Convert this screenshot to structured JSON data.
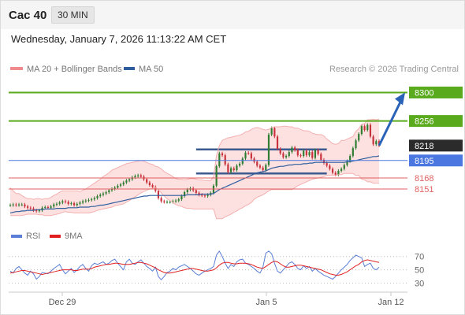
{
  "header": {
    "ticker": "Cac 40",
    "timeframe": "30 MIN"
  },
  "datetime": "Wednesday, January 7, 2026 11:13:22 AM CET",
  "legend_top": [
    {
      "label": "MA 20 + Bollinger Bands",
      "color": "#f08b8b"
    },
    {
      "label": "MA 50",
      "color": "#2f5d9e"
    }
  ],
  "copyright": "Research © 2026 Trading Central",
  "legend_bottom": [
    {
      "label": "RSI",
      "color": "#5b7fd6"
    },
    {
      "label": "9MA",
      "color": "#e02020"
    }
  ],
  "colors": {
    "resistance": "#5aaa1e",
    "support_red": "#e06060",
    "pivot_blue": "#4a78e0",
    "price_tag": "#2b2b2b",
    "forecast_arrow": "#2a62b8",
    "candle_red": "#c8323c",
    "candle_green": "#2e7d32",
    "bb_fill": "#fde1e1"
  },
  "chart_data": [
    {
      "type": "candlestick",
      "title": "",
      "y_axis_ticks": [
        8300,
        8256,
        8218,
        8195,
        8168,
        8151
      ],
      "ylim": [
        8095,
        8320
      ],
      "x_tick_labels": [
        "Dec 29",
        "Jan 5",
        "Jan 12"
      ],
      "levels": [
        {
          "value": 8300,
          "label": "8300",
          "kind": "resistance"
        },
        {
          "value": 8256,
          "label": "8256",
          "kind": "resistance"
        },
        {
          "value": 8218,
          "label": "8218",
          "kind": "last_price"
        },
        {
          "value": 8195,
          "label": "8195",
          "kind": "pivot"
        },
        {
          "value": 8168,
          "label": "8168",
          "kind": "support"
        },
        {
          "value": 8151,
          "label": "8151",
          "kind": "support"
        }
      ],
      "range_box": {
        "top": 8212,
        "bottom": 8175
      },
      "forecast_arrow": {
        "from": 8218,
        "to": 8300
      },
      "close": [
        8126,
        8127,
        8126,
        8127,
        8127,
        8124,
        8122,
        8121,
        8118,
        8117,
        8118,
        8122,
        8123,
        8122,
        8124,
        8127,
        8128,
        8130,
        8132,
        8131,
        8128,
        8129,
        8126,
        8128,
        8130,
        8132,
        8133,
        8134,
        8135,
        8137,
        8140,
        8142,
        8144,
        8146,
        8149,
        8151,
        8153,
        8156,
        8158,
        8161,
        8164,
        8166,
        8169,
        8171,
        8172,
        8170,
        8166,
        8161,
        8157,
        8154,
        8148,
        8137,
        8132,
        8131,
        8131,
        8131,
        8132,
        8133,
        8135,
        8140,
        8146,
        8150,
        8152,
        8149,
        8145,
        8142,
        8141,
        8140,
        8142,
        8145,
        8156,
        8186,
        8206,
        8203,
        8189,
        8177,
        8183,
        8180,
        8187,
        8190,
        8198,
        8207,
        8206,
        8198,
        8193,
        8187,
        8184,
        8180,
        8188,
        8235,
        8245,
        8232,
        8213,
        8206,
        8200,
        8202,
        8208,
        8215,
        8211,
        8203,
        8202,
        8210,
        8203,
        8208,
        8199,
        8211,
        8205,
        8196,
        8191,
        8187,
        8182,
        8176,
        8173,
        8179,
        8182,
        8188,
        8194,
        8202,
        8214,
        8226,
        8236,
        8248,
        8242,
        8250,
        8232,
        8220,
        8225,
        8218
      ],
      "bb_upper": [
        8153,
        8148,
        8144,
        8144,
        8141,
        8138,
        8136,
        8136,
        8135,
        8136,
        8136,
        8135,
        8136,
        8136,
        8138,
        8141,
        8143,
        8146,
        8148,
        8148,
        8148,
        8148,
        8148,
        8148,
        8147,
        8149,
        8151,
        8154,
        8157,
        8160,
        8163,
        8166,
        8170,
        8173,
        8176,
        8180,
        8182,
        8184,
        8186,
        8188,
        8190,
        8191,
        8192,
        8193,
        8194,
        8195,
        8194,
        8192,
        8190,
        8189,
        8186,
        8185,
        8182,
        8178,
        8175,
        8173,
        8170,
        8167,
        8166,
        8166,
        8165,
        8166,
        8167,
        8167,
        8166,
        8165,
        8165,
        8164,
        8164,
        8164,
        8170,
        8202,
        8218,
        8226,
        8228,
        8230,
        8231,
        8232,
        8233,
        8234,
        8236,
        8239,
        8240,
        8243,
        8245,
        8246,
        8245,
        8243,
        8242,
        8243,
        8246,
        8247,
        8247,
        8247,
        8248,
        8248,
        8247,
        8247,
        8245,
        8245,
        8243,
        8241,
        8241,
        8240,
        8237,
        8236,
        8235,
        8235,
        8233,
        8228,
        8225,
        8221,
        8220,
        8221,
        8226,
        8226,
        8228,
        8230,
        8232,
        8240,
        8244,
        8251,
        8252,
        8258,
        8258,
        8259,
        8258,
        8259
      ],
      "bb_lower": [
        8110,
        8110,
        8110,
        8110,
        8110,
        8111,
        8112,
        8112,
        8112,
        8112,
        8111,
        8111,
        8110,
        8110,
        8110,
        8111,
        8112,
        8113,
        8115,
        8116,
        8115,
        8115,
        8114,
        8114,
        8114,
        8114,
        8114,
        8114,
        8115,
        8116,
        8118,
        8119,
        8120,
        8121,
        8122,
        8123,
        8125,
        8126,
        8127,
        8128,
        8131,
        8133,
        8136,
        8139,
        8142,
        8145,
        8147,
        8149,
        8151,
        8152,
        8153,
        8150,
        8145,
        8140,
        8136,
        8133,
        8130,
        8127,
        8125,
        8124,
        8122,
        8121,
        8121,
        8120,
        8120,
        8120,
        8120,
        8120,
        8120,
        8120,
        8120,
        8105,
        8105,
        8105,
        8108,
        8110,
        8112,
        8115,
        8117,
        8120,
        8122,
        8125,
        8127,
        8130,
        8135,
        8138,
        8140,
        8142,
        8145,
        8148,
        8150,
        8150,
        8150,
        8150,
        8150,
        8150,
        8150,
        8150,
        8153,
        8156,
        8158,
        8160,
        8162,
        8164,
        8166,
        8167,
        8168,
        8169,
        8170,
        8172,
        8172,
        8172,
        8172,
        8173,
        8173,
        8175,
        8175,
        8175,
        8175,
        8172,
        8172,
        8166,
        8165,
        8162,
        8162,
        8160,
        8160,
        8160
      ],
      "ma50": [
        8114,
        8115,
        8116,
        8116,
        8117,
        8117,
        8118,
        8118,
        8118,
        8119,
        8119,
        8119,
        8120,
        8120,
        8120,
        8120,
        8121,
        8121,
        8121,
        8121,
        8122,
        8122,
        8122,
        8122,
        8123,
        8123,
        8123,
        8123,
        8124,
        8124,
        8125,
        8126,
        8126,
        8127,
        8128,
        8129,
        8130,
        8131,
        8132,
        8133,
        8134,
        8135,
        8136,
        8137,
        8138,
        8139,
        8140,
        8140,
        8141,
        8141,
        8141,
        8141,
        8141,
        8141,
        8141,
        8141,
        8141,
        8141,
        8141,
        8141,
        8141,
        8142,
        8142,
        8142,
        8142,
        8142,
        8143,
        8143,
        8143,
        8143,
        8144,
        8147,
        8150,
        8152,
        8154,
        8156,
        8158,
        8160,
        8162,
        8164,
        8166,
        8168,
        8170,
        8172,
        8174,
        8176,
        8177,
        8178,
        8179,
        8181,
        8183,
        8184,
        8185,
        8186,
        8186,
        8187,
        8188,
        8188,
        8189,
        8189,
        8189,
        8190,
        8190,
        8191,
        8191,
        8192,
        8192,
        8192,
        8192,
        8192,
        8192,
        8192,
        8192,
        8192,
        8192,
        8192,
        8193,
        8193,
        8194,
        8195,
        8196,
        8197,
        8198,
        8199,
        8200,
        8201,
        8201,
        8202
      ]
    },
    {
      "type": "line",
      "title": "",
      "y_axis_ticks": [
        70,
        50,
        30
      ],
      "ylim": [
        20,
        85
      ],
      "series": [
        {
          "name": "RSI",
          "values": [
            48,
            45,
            52,
            55,
            50,
            45,
            42,
            48,
            44,
            36,
            40,
            46,
            45,
            44,
            48,
            52,
            55,
            58,
            50,
            44,
            48,
            52,
            46,
            50,
            55,
            58,
            52,
            48,
            56,
            60,
            58,
            60,
            62,
            58,
            60,
            64,
            66,
            60,
            55,
            50,
            62,
            66,
            60,
            58,
            62,
            65,
            60,
            55,
            52,
            48,
            54,
            40,
            35,
            40,
            46,
            48,
            52,
            50,
            54,
            56,
            58,
            55,
            52,
            48,
            44,
            42,
            45,
            48,
            50,
            52,
            55,
            72,
            78,
            70,
            60,
            52,
            58,
            55,
            62,
            65,
            66,
            60,
            58,
            55,
            52,
            48,
            45,
            54,
            75,
            78,
            74,
            60,
            48,
            45,
            50,
            55,
            60,
            62,
            58,
            52,
            50,
            56,
            52,
            55,
            48,
            52,
            48,
            45,
            42,
            40,
            38,
            36,
            40,
            45,
            50,
            54,
            58,
            64,
            68,
            72,
            70,
            68,
            55,
            58,
            60,
            52,
            50,
            54
          ]
        },
        {
          "name": "9MA",
          "values": [
            45,
            46,
            47,
            48,
            49,
            49,
            48,
            47,
            46,
            45,
            44,
            43,
            44,
            45,
            46,
            47,
            48,
            49,
            50,
            50,
            50,
            50,
            49,
            49,
            50,
            51,
            51,
            51,
            52,
            54,
            55,
            56,
            57,
            58,
            58,
            59,
            60,
            60,
            59,
            58,
            58,
            58,
            59,
            60,
            61,
            61,
            60,
            59,
            57,
            55,
            53,
            50,
            48,
            46,
            45,
            45,
            46,
            47,
            48,
            49,
            50,
            51,
            52,
            52,
            51,
            50,
            49,
            48,
            48,
            49,
            50,
            53,
            57,
            60,
            61,
            61,
            60,
            59,
            59,
            60,
            60,
            60,
            59,
            58,
            56,
            54,
            53,
            52,
            55,
            58,
            61,
            63,
            62,
            59,
            56,
            54,
            54,
            55,
            56,
            57,
            57,
            56,
            55,
            54,
            53,
            52,
            51,
            50,
            48,
            46,
            44,
            43,
            42,
            42,
            43,
            45,
            47,
            50,
            53,
            56,
            58,
            62,
            64,
            65,
            64,
            63,
            62,
            61
          ]
        }
      ]
    }
  ]
}
